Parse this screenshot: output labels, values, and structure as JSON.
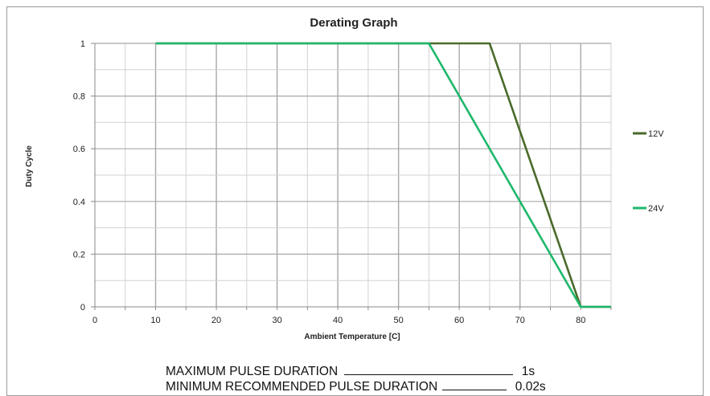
{
  "chart_data": {
    "type": "line",
    "title": "Derating Graph",
    "xlabel": "Ambient Temperature  [C]",
    "ylabel": "Duty Cycle",
    "xlim": [
      0,
      85
    ],
    "ylim": [
      0,
      1
    ],
    "xticks": [
      0,
      10,
      20,
      30,
      40,
      50,
      60,
      70,
      80
    ],
    "yticks": [
      0,
      0.2,
      0.4,
      0.6,
      0.8,
      1
    ],
    "minor_x_step": 5,
    "minor_y_step": 0.1,
    "grid": true,
    "legend_position": "right",
    "series": [
      {
        "name": "12V",
        "color": "#4a6a2a",
        "points": [
          [
            10,
            1
          ],
          [
            65,
            1
          ],
          [
            80,
            0
          ],
          [
            85,
            0
          ]
        ]
      },
      {
        "name": "24V",
        "color": "#1db86a",
        "points": [
          [
            10,
            1
          ],
          [
            55,
            1
          ],
          [
            80,
            0
          ],
          [
            85,
            0
          ]
        ]
      }
    ]
  },
  "notes": [
    {
      "label": "MAXIMUM PULSE DURATION",
      "value": "1s"
    },
    {
      "label": "MINIMUM RECOMMENDED PULSE DURATION",
      "value": "0.02s"
    }
  ]
}
